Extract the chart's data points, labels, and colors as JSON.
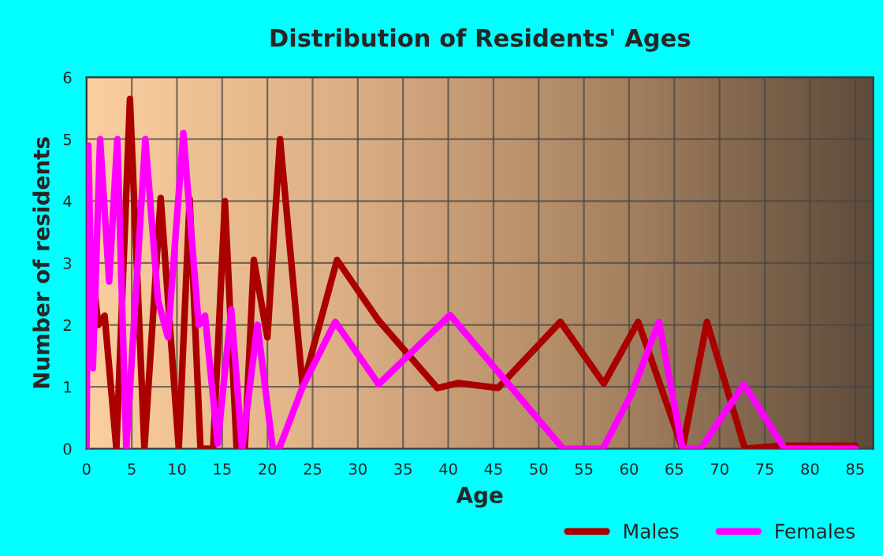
{
  "chart_data": {
    "type": "line",
    "title": "Distribution of Residents' Ages",
    "xlabel": "Age",
    "ylabel": "Number of residents",
    "xlim": [
      0,
      87
    ],
    "xticks": [
      0,
      5,
      10,
      15,
      20,
      25,
      30,
      35,
      40,
      45,
      50,
      55,
      60,
      65,
      70,
      75,
      80,
      85
    ],
    "ylim": [
      0,
      6
    ],
    "yticks": [
      0,
      1,
      2,
      3,
      4,
      5,
      6
    ],
    "grid": true,
    "legend": "bottom right",
    "marker": "none",
    "line_style": "solid",
    "series": [
      {
        "name": "Males",
        "color": "#aa0000",
        "x": [
          0,
          0.7,
          1.3,
          2,
          3.3,
          4.8,
          6.4,
          8.2,
          10.2,
          11.4,
          12.6,
          14,
          15.3,
          16.6,
          17.5,
          18.5,
          20,
          21.4,
          23.9,
          27.7,
          32.3,
          38.8,
          41.1,
          45.5,
          52.4,
          57.2,
          61,
          65.9,
          68.6,
          72.8,
          77,
          85
        ],
        "values": [
          3.05,
          2.8,
          2.0,
          2.15,
          0,
          5.65,
          0,
          4.05,
          0,
          4.03,
          0,
          0,
          4.0,
          0,
          0,
          3.05,
          1.8,
          5.0,
          1.0,
          3.05,
          2.07,
          0.98,
          1.06,
          0.98,
          2.05,
          1.05,
          2.05,
          0,
          2.05,
          0,
          0.05,
          0.05
        ]
      },
      {
        "name": "Females",
        "color": "#ff00ff",
        "x": [
          0,
          0.2,
          0.7,
          1.5,
          2.5,
          3.4,
          4.4,
          6.5,
          7.9,
          9.0,
          10.7,
          12.4,
          13.1,
          14.5,
          16,
          17.2,
          18.9,
          20.6,
          21.3,
          23.9,
          27.5,
          32.3,
          40.2,
          52.7,
          57.1,
          60.3,
          63.3,
          65.9,
          67.9,
          72.7,
          77.2,
          85
        ],
        "values": [
          0,
          4.9,
          1.3,
          5.0,
          2.7,
          5.0,
          0,
          5.0,
          2.4,
          1.8,
          5.1,
          2.0,
          2.15,
          0.08,
          2.25,
          0,
          2.0,
          0,
          0,
          1.0,
          2.05,
          1.04,
          2.16,
          0,
          0,
          0.9,
          2.05,
          0,
          0,
          1.04,
          0,
          0
        ]
      }
    ]
  }
}
